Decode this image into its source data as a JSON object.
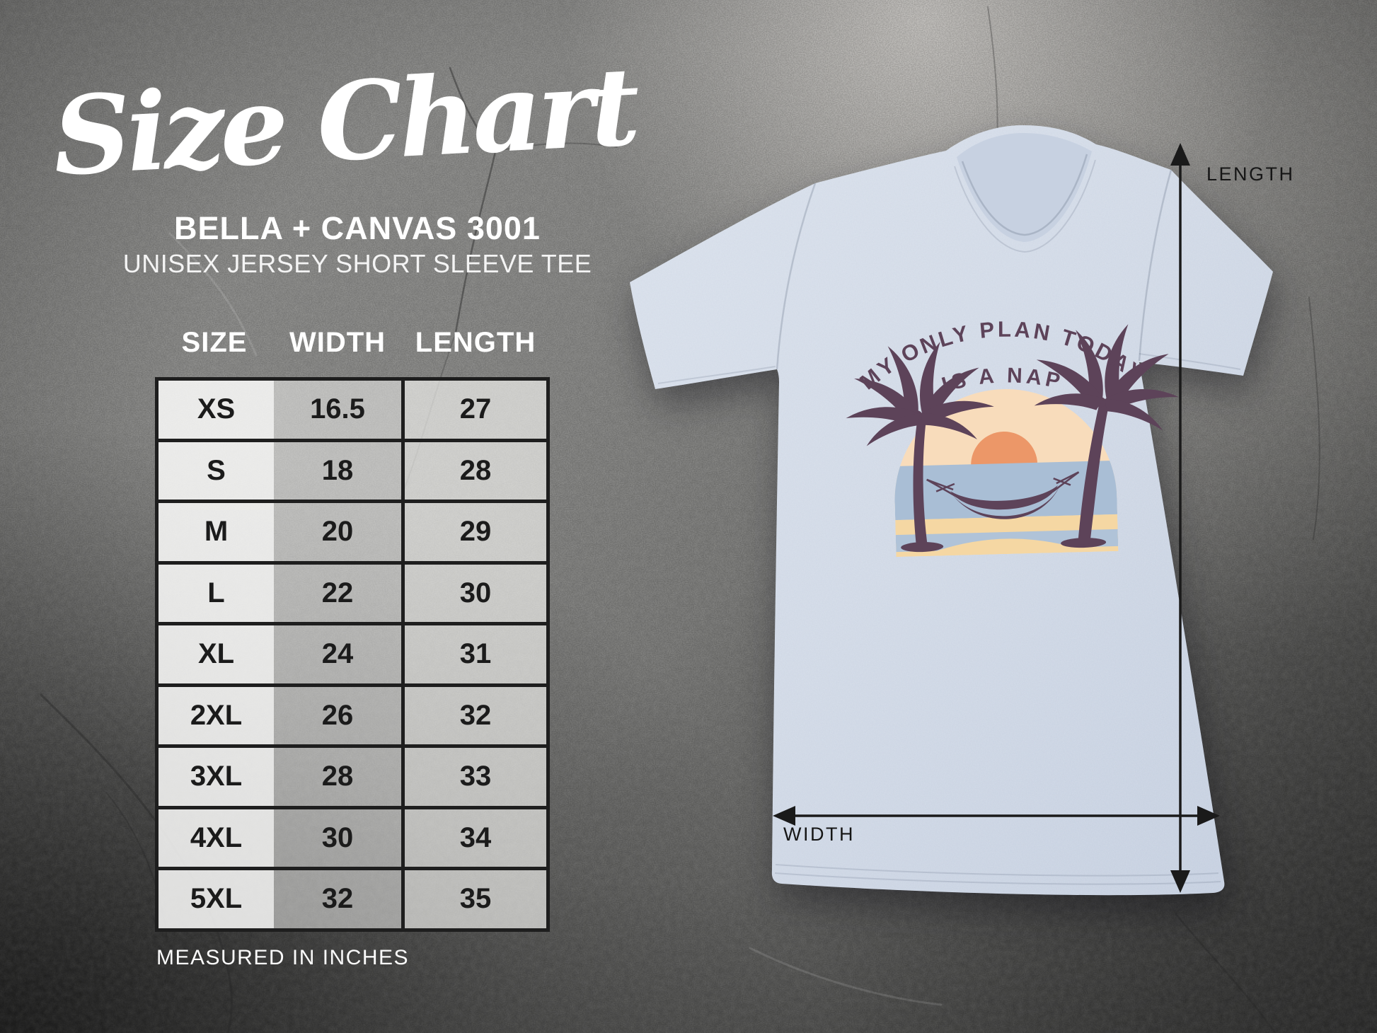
{
  "header": {
    "title": "Size Chart",
    "brand": "BELLA + CANVAS 3001",
    "product": "UNISEX JERSEY SHORT SLEEVE TEE"
  },
  "chart_data": {
    "type": "table",
    "title": "Size Chart — Bella + Canvas 3001 Unisex Jersey Short Sleeve Tee",
    "columns": [
      "SIZE",
      "WIDTH",
      "LENGTH"
    ],
    "rows": [
      {
        "size": "XS",
        "width": "16.5",
        "length": "27"
      },
      {
        "size": "S",
        "width": "18",
        "length": "28"
      },
      {
        "size": "M",
        "width": "20",
        "length": "29"
      },
      {
        "size": "L",
        "width": "22",
        "length": "30"
      },
      {
        "size": "XL",
        "width": "24",
        "length": "31"
      },
      {
        "size": "2XL",
        "width": "26",
        "length": "32"
      },
      {
        "size": "3XL",
        "width": "28",
        "length": "33"
      },
      {
        "size": "4XL",
        "width": "30",
        "length": "34"
      },
      {
        "size": "5XL",
        "width": "32",
        "length": "35"
      }
    ],
    "units_note": "MEASURED IN INCHES"
  },
  "shirt": {
    "design": {
      "line1": "MY ONLY PLAN TODAY",
      "line2": "IS A NAP"
    },
    "length_label": "LENGTH",
    "width_label": "WIDTH"
  },
  "colors": {
    "shirt": "#d0d9e6",
    "design_plum": "#5d4359",
    "design_sky": "#f8dcbb",
    "design_sun": "#ec9768",
    "design_sea": "#a9bed5",
    "design_sea_stripe": "#b0c3d8",
    "design_sand": "#f5d7a3",
    "arrow": "#1a1a1a",
    "table_border": "#1e1e1e"
  }
}
